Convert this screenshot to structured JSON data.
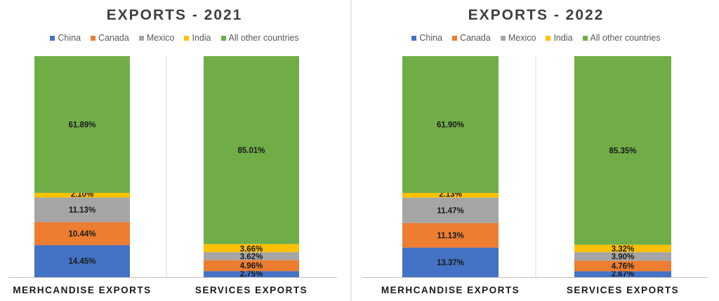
{
  "chart_data": [
    {
      "type": "bar",
      "stacked": true,
      "title": "EXPORTS - 2021",
      "categories": [
        "MERHCANDISE EXPORTS",
        "SERVICES EXPORTS"
      ],
      "series": [
        {
          "name": "China",
          "color": "#4472C4",
          "values": [
            14.45,
            2.75
          ]
        },
        {
          "name": "Canada",
          "color": "#ED7D31",
          "values": [
            10.44,
            4.96
          ]
        },
        {
          "name": "Mexico",
          "color": "#A5A5A5",
          "values": [
            11.13,
            3.62
          ]
        },
        {
          "name": "India",
          "color": "#FFC000",
          "values": [
            2.1,
            3.66
          ]
        },
        {
          "name": "All other countries",
          "color": "#70AD47",
          "values": [
            61.89,
            85.01
          ]
        }
      ],
      "labels": [
        [
          "14.45%",
          "2.75%"
        ],
        [
          "10.44%",
          "4.96%"
        ],
        [
          "11.13%",
          "3.62%"
        ],
        [
          "2.10%",
          "3.66%"
        ],
        [
          "61.89%",
          "85.01%"
        ]
      ],
      "ylim": [
        0,
        100
      ],
      "legend_position": "top",
      "grid": false
    },
    {
      "type": "bar",
      "stacked": true,
      "title": "EXPORTS - 2022",
      "categories": [
        "MERHCANDISE EXPORTS",
        "SERVICES EXPORTS"
      ],
      "series": [
        {
          "name": "China",
          "color": "#4472C4",
          "values": [
            13.37,
            2.67
          ]
        },
        {
          "name": "Canada",
          "color": "#ED7D31",
          "values": [
            11.13,
            4.76
          ]
        },
        {
          "name": "Mexico",
          "color": "#A5A5A5",
          "values": [
            11.47,
            3.9
          ]
        },
        {
          "name": "India",
          "color": "#FFC000",
          "values": [
            2.13,
            3.32
          ]
        },
        {
          "name": "All other countries",
          "color": "#70AD47",
          "values": [
            61.9,
            85.35
          ]
        }
      ],
      "labels": [
        [
          "13.37%",
          "2.67%"
        ],
        [
          "11.13%",
          "4.76%"
        ],
        [
          "11.47%",
          "3.90%"
        ],
        [
          "2.13%",
          "3.32%"
        ],
        [
          "61.90%",
          "85.35%"
        ]
      ],
      "ylim": [
        0,
        100
      ],
      "legend_position": "top",
      "grid": false
    }
  ]
}
